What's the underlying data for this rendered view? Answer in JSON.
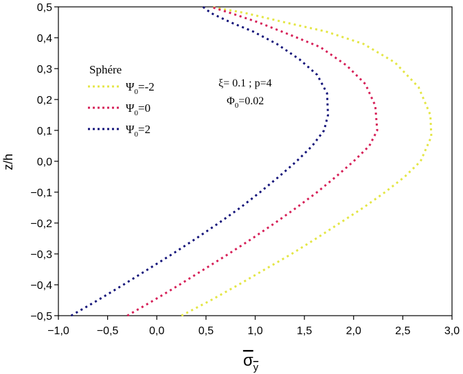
{
  "chart_data": {
    "type": "line",
    "xlabel": "σ",
    "xlabel_sub": "y",
    "ylabel": "z/h",
    "xlim": [
      -1.0,
      3.0
    ],
    "ylim": [
      -0.5,
      0.5
    ],
    "xticks": [
      -1.0,
      -0.5,
      0.0,
      0.5,
      1.0,
      1.5,
      2.0,
      2.5,
      3.0
    ],
    "xtick_labels": [
      "−1,0",
      "−0,5",
      "0,0",
      "0,5",
      "1,0",
      "1,5",
      "2,0",
      "2,5",
      "3,0"
    ],
    "yticks": [
      -0.5,
      -0.4,
      -0.3,
      -0.2,
      -0.1,
      0.0,
      0.1,
      0.2,
      0.3,
      0.4,
      0.5
    ],
    "ytick_labels": [
      "−0,5",
      "−0,4",
      "−0,3",
      "−0,2",
      "−0,1",
      "0,0",
      "0,1",
      "0,2",
      "0,3",
      "0,4",
      "0,5"
    ],
    "legend_title": "Sphére",
    "legend_position": "top-left",
    "annotation": {
      "line1": "ξ= 0.1 ; p=4",
      "line2_main": "Φ",
      "line2_sub": "0",
      "line2_rest": "=0.02"
    },
    "series": [
      {
        "name": "Ψ0=-2",
        "label_main": "Ψ",
        "label_sub": "0",
        "label_rest": "=-2",
        "color": "#e4e646",
        "x": [
          0.25,
          0.55,
          0.83,
          1.1,
          1.37,
          1.62,
          1.86,
          2.1,
          2.32,
          2.52,
          2.68,
          2.79,
          2.78,
          2.66,
          2.42,
          2.1,
          1.72,
          1.3,
          0.9,
          0.55
        ],
        "y": [
          -0.5,
          -0.45,
          -0.4,
          -0.35,
          -0.3,
          -0.25,
          -0.2,
          -0.15,
          -0.1,
          -0.05,
          0.0,
          0.08,
          0.15,
          0.24,
          0.32,
          0.38,
          0.42,
          0.45,
          0.48,
          0.5
        ]
      },
      {
        "name": "Ψ0=0",
        "label_main": "Ψ",
        "label_sub": "0",
        "label_rest": "=0",
        "color": "#d62058",
        "x": [
          -0.3,
          -0.03,
          0.23,
          0.48,
          0.73,
          0.97,
          1.2,
          1.42,
          1.63,
          1.82,
          2.0,
          2.16,
          2.24,
          2.22,
          2.12,
          1.93,
          1.66,
          1.35,
          1.03,
          0.75,
          0.55
        ],
        "y": [
          -0.5,
          -0.45,
          -0.4,
          -0.35,
          -0.3,
          -0.25,
          -0.2,
          -0.15,
          -0.1,
          -0.05,
          0.0,
          0.05,
          0.1,
          0.18,
          0.25,
          0.31,
          0.37,
          0.41,
          0.45,
          0.48,
          0.5
        ]
      },
      {
        "name": "Ψ0=2",
        "label_main": "Ψ",
        "label_sub": "0",
        "label_rest": "=2",
        "color": "#14147a",
        "x": [
          -0.87,
          -0.6,
          -0.34,
          -0.09,
          0.16,
          0.4,
          0.63,
          0.85,
          1.05,
          1.24,
          1.42,
          1.58,
          1.7,
          1.74,
          1.73,
          1.63,
          1.45,
          1.22,
          0.98,
          0.75,
          0.55,
          0.47
        ],
        "y": [
          -0.5,
          -0.45,
          -0.4,
          -0.35,
          -0.3,
          -0.25,
          -0.2,
          -0.15,
          -0.1,
          -0.05,
          0.0,
          0.05,
          0.1,
          0.15,
          0.22,
          0.28,
          0.33,
          0.38,
          0.42,
          0.45,
          0.48,
          0.5
        ]
      }
    ]
  }
}
